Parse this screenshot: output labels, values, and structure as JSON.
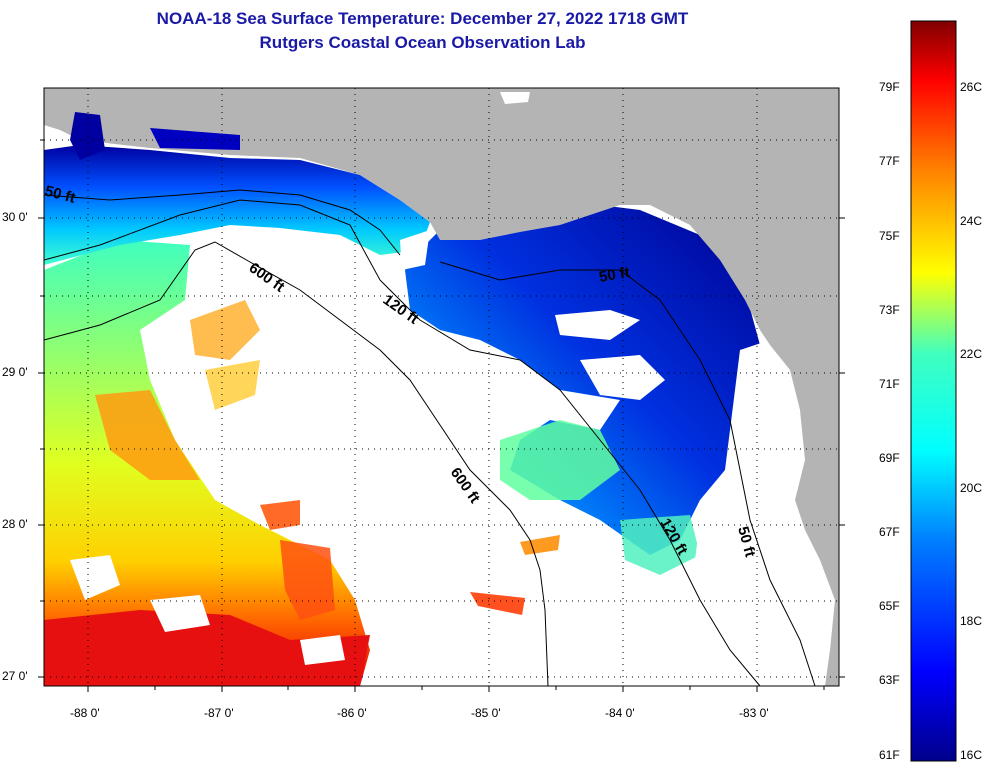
{
  "title": {
    "line1": "NOAA-18 Sea Surface Temperature:  December 27, 2022 1718 GMT",
    "line2": "Rutgers Coastal Ocean Observation Lab"
  },
  "axes": {
    "x_labels": [
      "-88 0'",
      "-87 0'",
      "-86 0'",
      "-85 0'",
      "-84 0'",
      "-83 0'"
    ],
    "y_labels": [
      "30 0'",
      "29 0'",
      "28 0'",
      "27 0'"
    ],
    "lon_range": [
      -88.33,
      -82.5
    ],
    "lat_range": [
      26.95,
      30.85
    ]
  },
  "contours": {
    "labels": [
      "50 ft",
      "600 ft",
      "120 ft",
      "50 ft",
      "600 ft",
      "120 ft",
      "50 ft"
    ]
  },
  "colorbar": {
    "fahrenheit": [
      "79F",
      "77F",
      "75F",
      "73F",
      "71F",
      "69F",
      "67F",
      "65F",
      "63F",
      "61F"
    ],
    "celsius": [
      "26C",
      "24C",
      "22C",
      "20C",
      "18C",
      "16C"
    ],
    "range_c": [
      16,
      27
    ]
  },
  "colors": {
    "land": "#b4b4b4",
    "cloud": "#ffffff",
    "title": "#1a1aa6"
  }
}
